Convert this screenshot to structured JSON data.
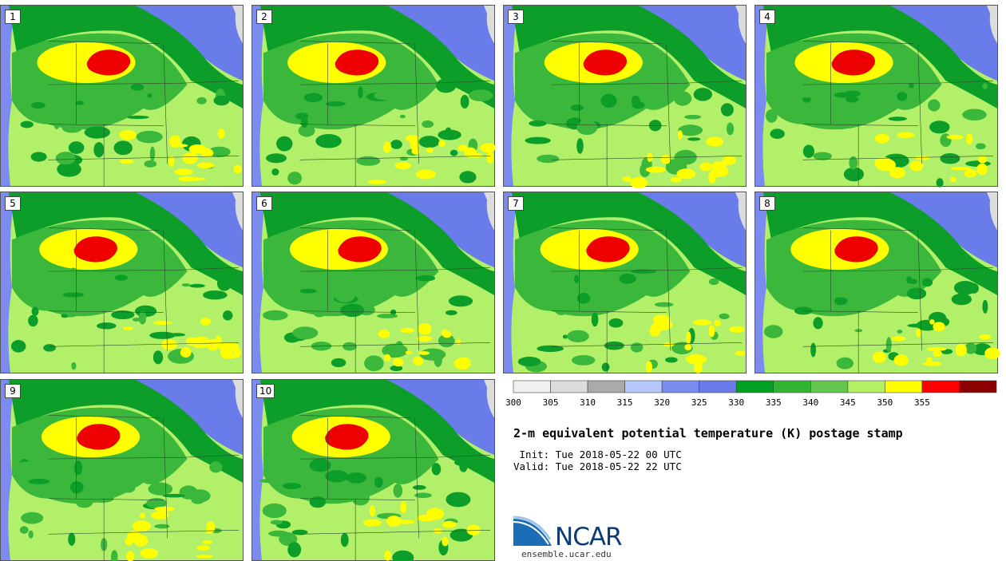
{
  "panels": [
    {
      "label": "1"
    },
    {
      "label": "2"
    },
    {
      "label": "3"
    },
    {
      "label": "4"
    },
    {
      "label": "5"
    },
    {
      "label": "6"
    },
    {
      "label": "7"
    },
    {
      "label": "8"
    },
    {
      "label": "9"
    },
    {
      "label": "10"
    }
  ],
  "colorbar": {
    "ticks": [
      "300",
      "305",
      "310",
      "315",
      "320",
      "325",
      "330",
      "335",
      "340",
      "345",
      "350",
      "355"
    ],
    "colors": [
      "#f0f0f0",
      "#dcdcdc",
      "#aaaaaa",
      "#b4c8fa",
      "#7b8bf0",
      "#6a7cea",
      "#00a020",
      "#32b432",
      "#64c850",
      "#b4f064",
      "#ffff00",
      "#ff0000",
      "#8b0000"
    ]
  },
  "title": "2-m equivalent potential temperature (K) postage stamp",
  "init": " Init: Tue 2018-05-22 00 UTC",
  "valid": "Valid: Tue 2018-05-22 22 UTC",
  "logo": {
    "name": "NCAR",
    "url": "ensemble.ucar.edu"
  },
  "map_colors": {
    "ocean": "#7b8bf0",
    "cold": "#6a7cea",
    "dark_green": "#0d9e2a",
    "green": "#3bb83b",
    "light_green": "#b2f06a",
    "yellow": "#ffff00",
    "red": "#ee0000",
    "terrain": "#dcdcdc"
  }
}
